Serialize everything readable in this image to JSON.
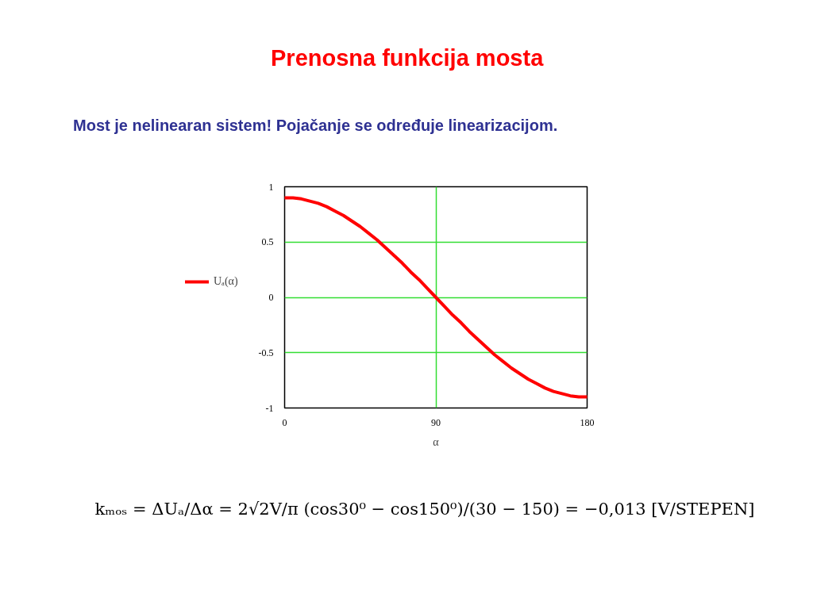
{
  "chart_data": {
    "type": "line",
    "title": "Prenosna funkcija mosta",
    "subtitle": "Most je nelinearan sistem! Pojačanje se određuje linearizacijom.",
    "xlabel": "α",
    "x": [
      0,
      5,
      10,
      15,
      20,
      25,
      30,
      35,
      40,
      45,
      50,
      55,
      60,
      65,
      70,
      75,
      80,
      85,
      90,
      95,
      100,
      105,
      110,
      115,
      120,
      125,
      130,
      135,
      140,
      145,
      150,
      155,
      160,
      165,
      170,
      175,
      180
    ],
    "series": [
      {
        "name": "Uₐ(α)",
        "color": "#ff0000",
        "values": [
          0.9,
          0.9,
          0.89,
          0.87,
          0.85,
          0.82,
          0.78,
          0.74,
          0.69,
          0.64,
          0.58,
          0.52,
          0.45,
          0.38,
          0.31,
          0.23,
          0.16,
          0.08,
          0.0,
          -0.08,
          -0.16,
          -0.23,
          -0.31,
          -0.38,
          -0.45,
          -0.52,
          -0.58,
          -0.64,
          -0.69,
          -0.74,
          -0.78,
          -0.82,
          -0.85,
          -0.87,
          -0.89,
          -0.9,
          -0.9
        ]
      }
    ],
    "xlim": [
      0,
      180
    ],
    "ylim": [
      -1,
      1
    ],
    "xticks": [
      0,
      90,
      180
    ],
    "yticks": [
      -1,
      -0.5,
      0,
      0.5,
      1
    ],
    "grid": true,
    "legend": "left",
    "line_style": "solid",
    "annotations": [
      "kₘₒₛ = ΔUₐ/Δα = 2√2V/π (cos30⁰ − cos150⁰)/(30 − 150) = −0,013 [V/STEPEN]"
    ]
  }
}
